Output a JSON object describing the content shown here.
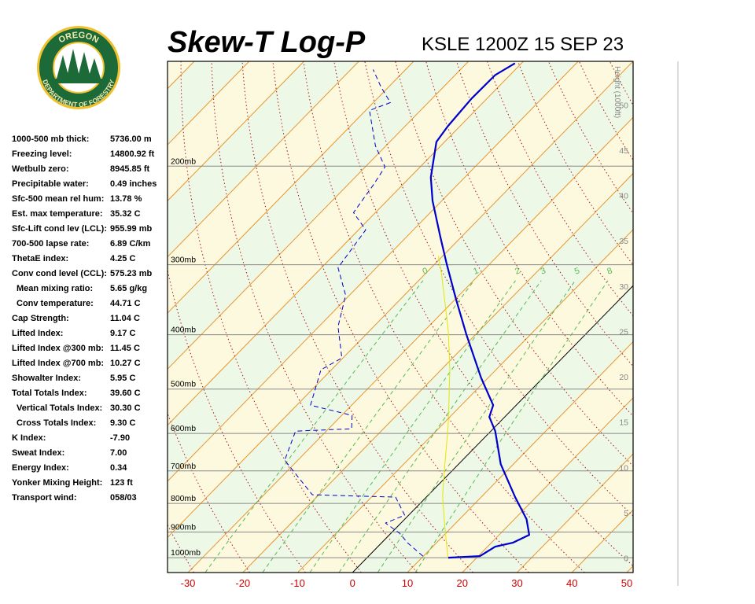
{
  "logo": {
    "top": "OREGON",
    "bottom": "DEPARTMENT OF FORESTRY"
  },
  "indices": [
    [
      "1000-500 mb thick:",
      "5736.00 m"
    ],
    [
      "Freezing level:",
      "14800.92 ft"
    ],
    [
      "Wetbulb zero:",
      "8945.85 ft"
    ],
    [
      "Precipitable water:",
      "0.49 inches"
    ],
    [
      "Sfc-500 mean rel hum:",
      "13.78 %"
    ],
    [
      "Est. max temperature:",
      "35.32 C"
    ],
    [
      "Sfc-Lift cond lev (LCL):",
      "955.99 mb"
    ],
    [
      "700-500 lapse rate:",
      "6.89 C/km"
    ],
    [
      "ThetaE index:",
      "4.25 C"
    ],
    [
      "Conv cond level (CCL):",
      "575.23 mb"
    ],
    [
      "Mean mixing ratio:",
      "5.65 g/kg"
    ],
    [
      "Conv temperature:",
      "44.71 C"
    ],
    [
      "Cap Strength:",
      "11.04 C"
    ],
    [
      "Lifted Index:",
      "9.17 C"
    ],
    [
      "Lifted Index @300 mb:",
      "11.45 C"
    ],
    [
      "Lifted Index @700 mb:",
      "10.27 C"
    ],
    [
      "Showalter Index:",
      "5.95 C"
    ],
    [
      "Total Totals Index:",
      "39.60 C"
    ],
    [
      "Vertical Totals Index:",
      "30.30 C"
    ],
    [
      "Cross Totals Index:",
      "9.30 C"
    ],
    [
      "K Index:",
      "-7.90"
    ],
    [
      "Sweat Index:",
      "7.00"
    ],
    [
      "Energy Index:",
      "0.34"
    ],
    [
      "Yonker Mixing Height:",
      "123 ft"
    ],
    [
      "Transport wind:",
      "058/03"
    ]
  ],
  "chart_data": {
    "type": "skewt",
    "title": "Skew-T Log-P",
    "subtitle": "KSLE 1200Z 15 SEP 23",
    "xlim": [
      -33.73,
      51.15
    ],
    "xticks": [
      -30,
      -20,
      -10,
      0,
      10,
      20,
      30,
      40,
      50
    ],
    "ylim": [
      1063,
      130
    ],
    "ylog": true,
    "yticks": [
      {
        "value": 1000,
        "label": "1000mb"
      },
      {
        "value": 900,
        "label": "900mb"
      },
      {
        "value": 800,
        "label": "800mb"
      },
      {
        "value": 700,
        "label": "700mb"
      },
      {
        "value": 600,
        "label": "600mb"
      },
      {
        "value": 500,
        "label": "500mb"
      },
      {
        "value": 400,
        "label": "400mb"
      },
      {
        "value": 300,
        "label": "300mb"
      },
      {
        "value": 200,
        "label": "200mb"
      }
    ],
    "y2label": "Height (1000ft)",
    "y2lim": [
      -1.6,
      54.8
    ],
    "y2ticks": [
      0,
      5,
      10,
      15,
      20,
      25,
      30,
      35,
      40,
      45,
      50
    ],
    "mixing_ratios": [
      {
        "value": 0.4,
        "label": "0"
      },
      1,
      2,
      3,
      5,
      8
    ],
    "profiles": [
      {
        "color": "#e6e600",
        "dashed": false,
        "width": 1,
        "pressure": [
          996.8,
          940.5,
          853.6,
          774.7,
          703.1,
          579.2,
          462.0,
          393.1,
          313.5,
          289.2
        ],
        "values": [
          14.6,
          11.8,
          7.2,
          2.7,
          -1.2,
          -8.9,
          -18.4,
          -25.7,
          -36.7,
          -40.8
        ]
      },
      {
        "color": "#0000cc",
        "dashed": true,
        "width": 1,
        "pressure": [
          993.6,
          940.5,
          904.7,
          867.5,
          839.9,
          779.7,
          772.2,
          669.9,
          594.4,
          588.7,
          557.2,
          534.3,
          462.0,
          440.1,
          386.8,
          340.0,
          303.6,
          259.9,
          242.1,
          216.2,
          200.7,
          184.0,
          159.1,
          154.0,
          144.4,
          134.5
        ],
        "values": [
          9.9,
          4.7,
          1.6,
          -2.8,
          -0.7,
          -5.6,
          -21.2,
          -32.4,
          -35.6,
          -25.8,
          -28.1,
          -37.5,
          -41.9,
          -40.2,
          -46.5,
          -50.7,
          -57.0,
          -58.7,
          -64.0,
          -65.3,
          -66.4,
          -71.9,
          -79.3,
          -76.9,
          -81.4,
          -85.9
        ]
      },
      {
        "color": "#0000cc",
        "dashed": false,
        "width": 2.2,
        "pressure": [
          1000,
          993.6,
          955.8,
          940.5,
          910.6,
          853.6,
          779.7,
          680.9,
          594.4,
          560.8,
          534.3,
          477.2,
          399.5,
          345.4,
          298.7,
          266.7,
          230.6,
          209.4,
          181.0,
          169.7,
          151.5,
          137.5,
          131.0
        ],
        "values": [
          14.8,
          20.3,
          21.4,
          23.9,
          25.5,
          22.2,
          16.2,
          7.7,
          0.8,
          -2.8,
          -4.2,
          -11.3,
          -21.7,
          -29.9,
          -37.9,
          -44.0,
          -51.7,
          -56.2,
          -61.5,
          -62.2,
          -62.8,
          -62.7,
          -61.2
        ]
      }
    ]
  }
}
